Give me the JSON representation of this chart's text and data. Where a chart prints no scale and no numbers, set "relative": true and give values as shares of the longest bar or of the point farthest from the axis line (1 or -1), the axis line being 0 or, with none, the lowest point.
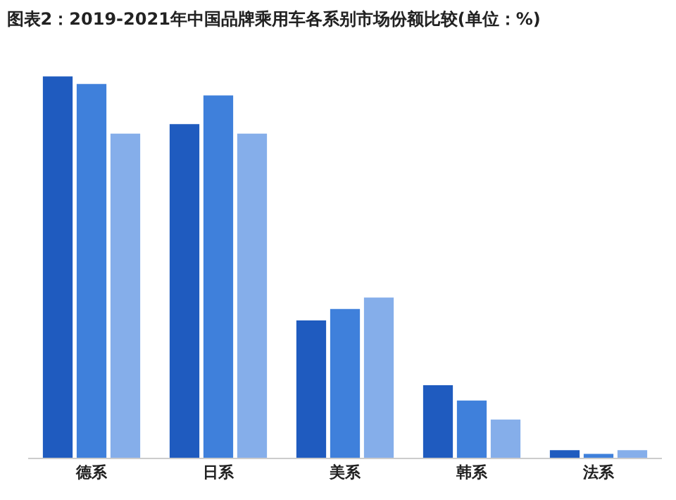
{
  "chart_data": {
    "type": "bar",
    "title": "图表2：2019-2021年中国品牌乘用车各系别市场份额比较(单位：%)",
    "relative": true,
    "categories": [
      "德系",
      "日系",
      "美系",
      "韩系",
      "法系"
    ],
    "series": [
      {
        "color": "#1f5bbf",
        "values": [
          1,
          0.875,
          0.36,
          0.19,
          0.02
        ]
      },
      {
        "color": "#3f80db",
        "values": [
          0.98,
          0.95,
          0.39,
          0.15,
          0.01
        ]
      },
      {
        "color": "#85aeea",
        "values": [
          0.85,
          0.85,
          0.42,
          0.1,
          0.02
        ]
      }
    ]
  }
}
